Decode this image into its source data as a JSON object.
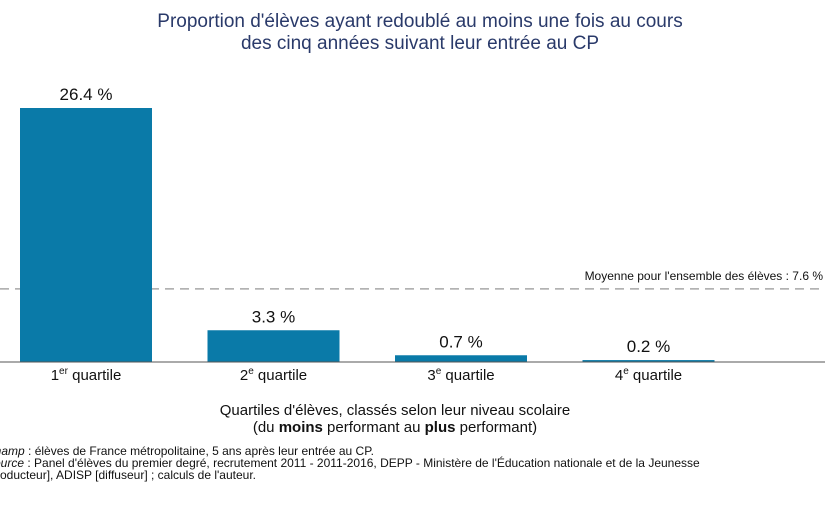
{
  "title_lines": [
    "Proportion d'élèves ayant redoublé au moins une fois au cours",
    "des cinq années suivant leur entrée au CP"
  ],
  "xlabel": {
    "line1": "Quartiles d'élèves, classés selon leur niveau scolaire",
    "line2_pre": "(du ",
    "line2_bold1": "moins",
    "line2_mid": " performant au ",
    "line2_bold2": "plus",
    "line2_post": " performant)"
  },
  "footnote": {
    "champ_label": "Champ",
    "champ_text": " : élèves de France métropolitaine, 5 ans après leur entrée au CP.",
    "source_label": "Source",
    "source_text": " : Panel d'élèves du premier degré, recrutement 2011 - 2011-2016, DEPP - Ministère de l'Éducation nationale et de la Jeunesse",
    "source_line2": "[producteur], ADISP [diffuseur] ; calculs de l'auteur."
  },
  "colors": {
    "bar": "#0a7aa8",
    "title": "#2a3a6a",
    "mean_line": "#a8a8a8",
    "axis": "#555555"
  },
  "chart_data": {
    "type": "bar",
    "categories": [
      {
        "num": "1",
        "sup": "er",
        "text": " quartile"
      },
      {
        "num": "2",
        "sup": "e",
        "text": " quartile"
      },
      {
        "num": "3",
        "sup": "e",
        "text": " quartile"
      },
      {
        "num": "4",
        "sup": "e",
        "text": " quartile"
      }
    ],
    "values": [
      26.4,
      3.3,
      0.7,
      0.2
    ],
    "value_labels": [
      "26.4 %",
      "3.3 %",
      "0.7 %",
      "0.2 %"
    ],
    "ylim": [
      0,
      26.4
    ],
    "reference_line": {
      "value": 7.6,
      "label": "Moyenne pour l'ensemble des élèves : 7.6 %"
    },
    "grid": false,
    "legend": "none"
  }
}
